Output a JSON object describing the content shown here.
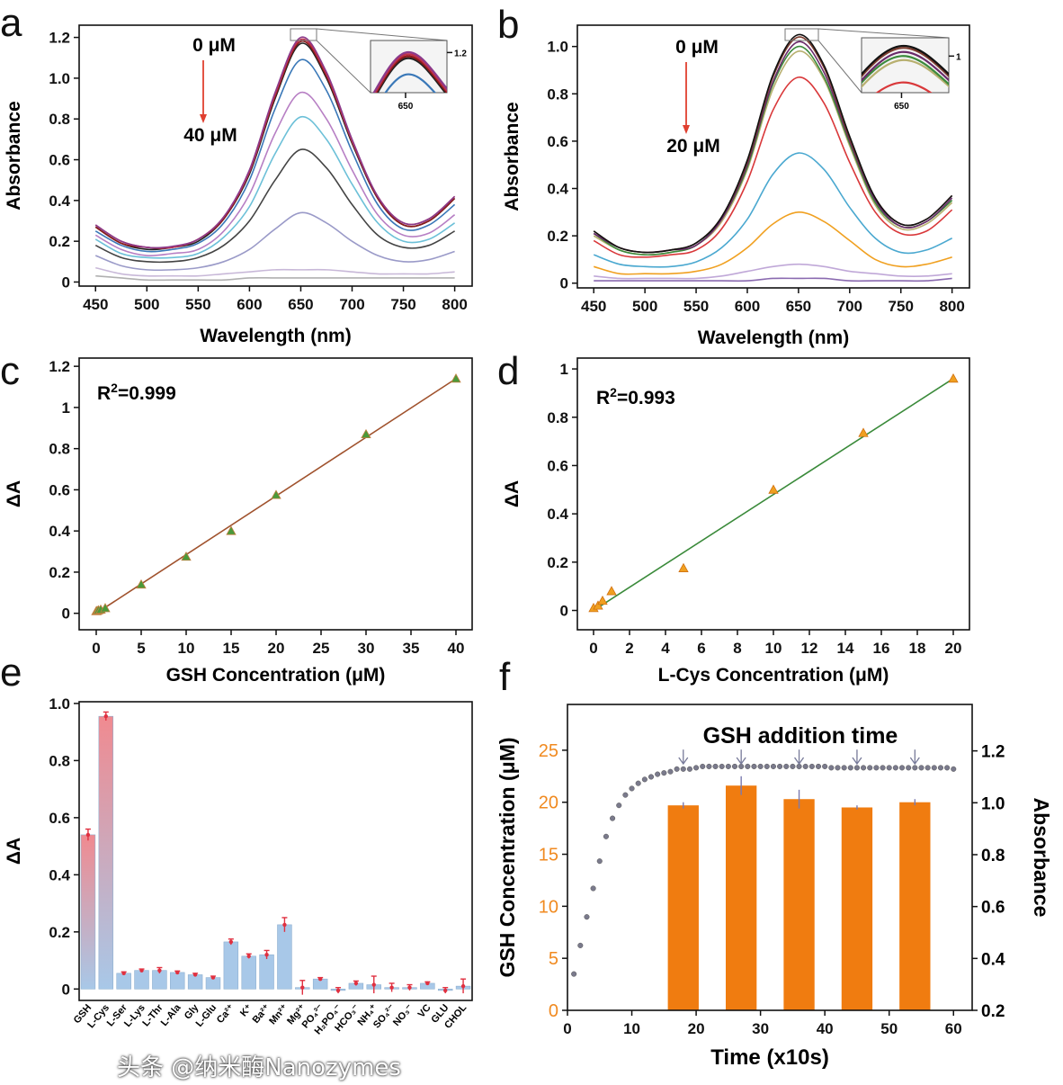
{
  "chart_data": [
    {
      "panel_label": "a",
      "type": "line",
      "xlabel": "Wavelength (nm)",
      "ylabel": "Absorbance",
      "xlim": [
        434,
        817
      ],
      "ylim": [
        -0.02,
        1.26
      ],
      "xticks": [
        450,
        500,
        550,
        600,
        650,
        700,
        750,
        800
      ],
      "yticks": [
        0,
        0.2,
        0.4,
        0.6,
        0.8,
        1.0,
        1.2
      ],
      "ytick_labels": [
        "0",
        "0.2",
        "0.4",
        "0.6",
        "0.8",
        "1.0",
        "1.2"
      ],
      "annotations": {
        "start": "0 μM",
        "end": "40 μM",
        "arrow_color": "#e04030"
      },
      "inset": {
        "xtick": "650",
        "ytick": "1.2"
      },
      "x": [
        450,
        475,
        500,
        525,
        550,
        575,
        600,
        625,
        650,
        675,
        700,
        725,
        750,
        775,
        800
      ],
      "series": [
        {
          "color": "#8b3a8b",
          "values": [
            0.28,
            0.2,
            0.17,
            0.175,
            0.21,
            0.32,
            0.55,
            0.93,
            1.2,
            1.03,
            0.7,
            0.42,
            0.29,
            0.31,
            0.42
          ]
        },
        {
          "color": "#c0304a",
          "values": [
            0.28,
            0.2,
            0.17,
            0.17,
            0.21,
            0.32,
            0.54,
            0.92,
            1.19,
            1.02,
            0.69,
            0.42,
            0.29,
            0.31,
            0.42
          ]
        },
        {
          "color": "#8b1a1a",
          "values": [
            0.27,
            0.19,
            0.17,
            0.17,
            0.21,
            0.31,
            0.54,
            0.91,
            1.18,
            1.01,
            0.69,
            0.41,
            0.28,
            0.3,
            0.41
          ]
        },
        {
          "color": "#222222",
          "values": [
            0.27,
            0.19,
            0.16,
            0.17,
            0.2,
            0.31,
            0.53,
            0.9,
            1.17,
            1.0,
            0.68,
            0.41,
            0.28,
            0.3,
            0.41
          ]
        },
        {
          "color": "#3a78b8",
          "values": [
            0.25,
            0.18,
            0.15,
            0.16,
            0.19,
            0.29,
            0.5,
            0.85,
            1.09,
            0.94,
            0.64,
            0.38,
            0.26,
            0.28,
            0.38
          ]
        },
        {
          "color": "#b77fc4",
          "values": [
            0.23,
            0.16,
            0.13,
            0.14,
            0.16,
            0.25,
            0.43,
            0.73,
            0.93,
            0.8,
            0.55,
            0.33,
            0.23,
            0.24,
            0.33
          ]
        },
        {
          "color": "#6cc0d8",
          "values": [
            0.21,
            0.14,
            0.12,
            0.12,
            0.14,
            0.22,
            0.37,
            0.63,
            0.81,
            0.7,
            0.48,
            0.29,
            0.2,
            0.21,
            0.29
          ]
        },
        {
          "color": "#444444",
          "values": [
            0.18,
            0.12,
            0.1,
            0.1,
            0.12,
            0.18,
            0.3,
            0.5,
            0.65,
            0.56,
            0.38,
            0.23,
            0.17,
            0.18,
            0.25
          ]
        },
        {
          "color": "#9a9ac8",
          "values": [
            0.13,
            0.08,
            0.06,
            0.06,
            0.07,
            0.1,
            0.16,
            0.26,
            0.34,
            0.29,
            0.2,
            0.13,
            0.1,
            0.11,
            0.15
          ]
        },
        {
          "color": "#c8b8d8",
          "values": [
            0.07,
            0.04,
            0.03,
            0.03,
            0.03,
            0.04,
            0.05,
            0.06,
            0.06,
            0.06,
            0.05,
            0.04,
            0.04,
            0.04,
            0.05
          ]
        },
        {
          "color": "#b0b0b0",
          "values": [
            0.03,
            0.02,
            0.01,
            0.01,
            0.01,
            0.01,
            0.02,
            0.02,
            0.02,
            0.02,
            0.02,
            0.02,
            0.02,
            0.02,
            0.02
          ]
        }
      ]
    },
    {
      "panel_label": "b",
      "type": "line",
      "xlabel": "Wavelength (nm)",
      "ylabel": "Absorbance",
      "xlim": [
        434,
        817
      ],
      "ylim": [
        -0.02,
        1.09
      ],
      "xticks": [
        450,
        500,
        550,
        600,
        650,
        700,
        750,
        800
      ],
      "yticks": [
        0,
        0.2,
        0.4,
        0.6,
        0.8,
        1.0
      ],
      "ytick_labels": [
        "0",
        "0.2",
        "0.4",
        "0.6",
        "0.8",
        "1.0"
      ],
      "annotations": {
        "start": "0 μM",
        "end": "20 μM",
        "arrow_color": "#e04030"
      },
      "inset": {
        "xtick": "650",
        "ytick": "1"
      },
      "x": [
        450,
        475,
        500,
        525,
        550,
        575,
        600,
        625,
        650,
        675,
        700,
        725,
        750,
        775,
        800
      ],
      "series": [
        {
          "color": "#111111",
          "values": [
            0.22,
            0.15,
            0.13,
            0.14,
            0.17,
            0.28,
            0.52,
            0.88,
            1.05,
            0.92,
            0.62,
            0.36,
            0.25,
            0.27,
            0.37
          ]
        },
        {
          "color": "#7a3b2e",
          "values": [
            0.22,
            0.15,
            0.13,
            0.14,
            0.17,
            0.28,
            0.51,
            0.87,
            1.04,
            0.91,
            0.61,
            0.36,
            0.25,
            0.27,
            0.37
          ]
        },
        {
          "color": "#6a2a6a",
          "values": [
            0.21,
            0.15,
            0.13,
            0.14,
            0.16,
            0.27,
            0.5,
            0.85,
            1.02,
            0.89,
            0.6,
            0.35,
            0.24,
            0.26,
            0.36
          ]
        },
        {
          "color": "#3c8a3c",
          "values": [
            0.21,
            0.14,
            0.12,
            0.13,
            0.16,
            0.27,
            0.49,
            0.84,
            1.0,
            0.87,
            0.59,
            0.34,
            0.24,
            0.26,
            0.35
          ]
        },
        {
          "color": "#b8b070",
          "values": [
            0.2,
            0.14,
            0.12,
            0.13,
            0.16,
            0.26,
            0.48,
            0.82,
            0.98,
            0.86,
            0.58,
            0.33,
            0.23,
            0.25,
            0.34
          ]
        },
        {
          "color": "#d9383a",
          "values": [
            0.18,
            0.12,
            0.11,
            0.12,
            0.14,
            0.23,
            0.43,
            0.73,
            0.87,
            0.76,
            0.51,
            0.3,
            0.21,
            0.22,
            0.31
          ]
        },
        {
          "color": "#4aa8d0",
          "values": [
            0.12,
            0.08,
            0.07,
            0.07,
            0.09,
            0.15,
            0.27,
            0.46,
            0.55,
            0.48,
            0.32,
            0.19,
            0.13,
            0.14,
            0.19
          ]
        },
        {
          "color": "#f0a020",
          "values": [
            0.07,
            0.04,
            0.04,
            0.04,
            0.05,
            0.08,
            0.15,
            0.25,
            0.3,
            0.26,
            0.18,
            0.1,
            0.07,
            0.08,
            0.11
          ]
        },
        {
          "color": "#c0a8d8",
          "values": [
            0.03,
            0.02,
            0.02,
            0.02,
            0.02,
            0.03,
            0.05,
            0.07,
            0.08,
            0.07,
            0.05,
            0.04,
            0.03,
            0.03,
            0.04
          ]
        },
        {
          "color": "#8a6ab0",
          "values": [
            0.01,
            0.01,
            0.01,
            0.01,
            0.01,
            0.01,
            0.01,
            0.02,
            0.02,
            0.02,
            0.01,
            0.01,
            0.01,
            0.01,
            0.02
          ]
        }
      ]
    },
    {
      "panel_label": "c",
      "type": "scatter",
      "xlabel": "GSH Concentration (μM)",
      "ylabel": "ΔA",
      "xlim": [
        -1.9,
        41.8
      ],
      "ylim": [
        -0.08,
        1.24
      ],
      "xticks": [
        0,
        5,
        10,
        15,
        20,
        25,
        30,
        35,
        40
      ],
      "yticks": [
        0,
        0.2,
        0.4,
        0.6,
        0.8,
        1,
        1.2
      ],
      "ytick_labels": [
        "0",
        "0.2",
        "0.4",
        "0.6",
        "0.8",
        "1",
        "1.2"
      ],
      "annotation": {
        "r2_prefix": "R",
        "r2_sup": "2",
        "r2_value": "=0.999"
      },
      "point_color": "#4a9a3a",
      "line_color": "#a0522d",
      "x": [
        0,
        0.1,
        0.25,
        0.5,
        1,
        5,
        10,
        15,
        20,
        30,
        40
      ],
      "y": [
        0.01,
        0.012,
        0.015,
        0.018,
        0.025,
        0.14,
        0.275,
        0.4,
        0.575,
        0.87,
        1.14
      ],
      "fit": {
        "x": [
          0,
          40
        ],
        "y": [
          0.0,
          1.14
        ]
      }
    },
    {
      "panel_label": "d",
      "type": "scatter",
      "xlabel": "L-Cys Concentration (μM)",
      "ylabel": "ΔA",
      "xlim": [
        -0.9,
        20.9
      ],
      "ylim": [
        -0.08,
        1.045
      ],
      "xticks": [
        0,
        2,
        4,
        6,
        8,
        10,
        12,
        14,
        16,
        18,
        20
      ],
      "yticks": [
        0,
        0.2,
        0.4,
        0.6,
        0.8,
        1
      ],
      "ytick_labels": [
        "0",
        "0.2",
        "0.4",
        "0.6",
        "0.8",
        "1"
      ],
      "annotation": {
        "r2_prefix": "R",
        "r2_sup": "2",
        "r2_value": "=0.993"
      },
      "point_color": "#f0a020",
      "line_color": "#3a8a3a",
      "x": [
        0,
        0.25,
        0.5,
        1,
        5,
        10,
        15,
        20
      ],
      "y": [
        0.01,
        0.02,
        0.04,
        0.08,
        0.175,
        0.5,
        0.735,
        0.96
      ],
      "fit": {
        "x": [
          0,
          20
        ],
        "y": [
          0.0,
          0.96
        ]
      }
    },
    {
      "panel_label": "e",
      "type": "bar",
      "ylabel": "ΔA",
      "ylim": [
        -0.04,
        1.006
      ],
      "yticks": [
        0,
        0.2,
        0.4,
        0.6,
        0.8,
        1.0
      ],
      "ytick_labels": [
        "0",
        "0.2",
        "0.4",
        "0.6",
        "0.8",
        "1.0"
      ],
      "bar_color": "#a8c8e8",
      "highlight_top_color": "#f08a90",
      "error_color": "#e03040",
      "categories": [
        "GSH",
        "L-Cys",
        "L-Ser",
        "L-Lys",
        "L-Thr",
        "L-Ala",
        "Gly",
        "L-Glu",
        "Ca²⁺",
        "K⁺",
        "Ba²⁺",
        "Mn²⁺",
        "Mg²⁺",
        "PO₄³⁻",
        "H₂PO₄⁻",
        "HCO₃⁻",
        "NH₄⁺",
        "SO₄²⁻",
        "NO₃⁻",
        "VC",
        "GLU",
        "CHOL"
      ],
      "values": [
        0.54,
        0.955,
        0.055,
        0.065,
        0.065,
        0.058,
        0.05,
        0.04,
        0.165,
        0.115,
        0.12,
        0.225,
        0.005,
        0.035,
        -0.005,
        0.02,
        0.015,
        0.005,
        0.005,
        0.02,
        -0.005,
        0.01
      ],
      "errors": [
        0.02,
        0.015,
        0.005,
        0.005,
        0.01,
        0.005,
        0.005,
        0.005,
        0.01,
        0.008,
        0.015,
        0.025,
        0.025,
        0.005,
        0.01,
        0.008,
        0.03,
        0.015,
        0.01,
        0.005,
        0.01,
        0.025
      ]
    },
    {
      "panel_label": "f",
      "type": "bar+scatter",
      "title": "GSH addition time",
      "xlabel": "Time (x10s)",
      "ylabel": "GSH Concentration (μM)",
      "ylabel_right": "Absorbance",
      "xlim": [
        0,
        62.9
      ],
      "ylim": [
        0,
        29.4
      ],
      "ylim_right": [
        0.2,
        1.379
      ],
      "xticks": [
        0,
        10,
        20,
        30,
        40,
        50,
        60
      ],
      "yticks": [
        0,
        5,
        10,
        15,
        20,
        25
      ],
      "yticks_right": [
        0.2,
        0.4,
        0.6,
        0.8,
        1.0,
        1.2
      ],
      "ytick_labels_right": [
        "0.2",
        "0.4",
        "0.6",
        "0.8",
        "1.0",
        "1.2"
      ],
      "bar_color": "#f07c10",
      "left_axis_color": "#f08a20",
      "point_color": "#7a7a8c",
      "arrow_color": "#777a99",
      "bars": {
        "x": [
          18,
          27,
          36,
          45,
          54
        ],
        "values": [
          19.7,
          21.6,
          20.3,
          19.5,
          20.0
        ],
        "errors": [
          0.3,
          0.9,
          0.9,
          0.2,
          0.3
        ]
      },
      "addition_times": [
        18,
        27,
        36,
        45,
        54
      ],
      "absorbance": {
        "x": [
          1,
          2,
          3,
          4,
          5,
          6,
          7,
          8,
          9,
          10,
          11,
          12,
          13,
          14,
          15,
          16,
          17,
          18,
          19,
          20,
          21,
          22,
          23,
          24,
          25,
          26,
          27,
          28,
          29,
          30,
          31,
          32,
          33,
          34,
          35,
          36,
          37,
          38,
          39,
          40,
          41,
          42,
          43,
          44,
          45,
          46,
          47,
          48,
          49,
          50,
          51,
          52,
          53,
          54,
          55,
          56,
          57,
          58,
          59,
          60
        ],
        "y": [
          0.34,
          0.45,
          0.56,
          0.67,
          0.775,
          0.87,
          0.94,
          0.99,
          1.03,
          1.055,
          1.075,
          1.09,
          1.1,
          1.11,
          1.115,
          1.12,
          1.13,
          1.13,
          1.13,
          1.135,
          1.14,
          1.14,
          1.14,
          1.14,
          1.14,
          1.14,
          1.14,
          1.14,
          1.14,
          1.14,
          1.14,
          1.14,
          1.14,
          1.14,
          1.14,
          1.14,
          1.14,
          1.14,
          1.14,
          1.14,
          1.135,
          1.135,
          1.135,
          1.135,
          1.135,
          1.135,
          1.135,
          1.135,
          1.135,
          1.135,
          1.135,
          1.135,
          1.135,
          1.135,
          1.135,
          1.135,
          1.135,
          1.135,
          1.135,
          1.13
        ]
      }
    }
  ],
  "watermark": "头条 @纳米酶Nanozymes"
}
